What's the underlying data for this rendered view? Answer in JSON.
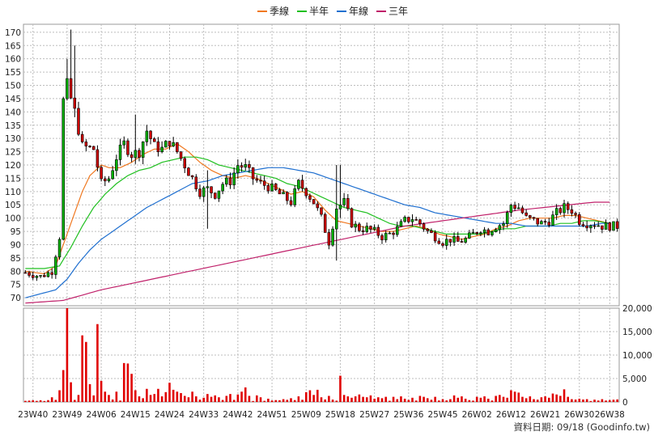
{
  "colors": {
    "up": "#00b000",
    "down": "#d00000",
    "volume": "#e00000",
    "ma_quarter": "#f07820",
    "ma_half": "#20c020",
    "ma_year": "#2070d0",
    "ma_three": "#c0206a",
    "grid": "#bdbdbd",
    "wick": "#000000"
  },
  "chart_data": {
    "type": "candlestick",
    "legend": [
      {
        "name": "季線",
        "color": "#f07820"
      },
      {
        "name": "半年",
        "color": "#20c020"
      },
      {
        "name": "年線",
        "color": "#2070d0"
      },
      {
        "name": "三年",
        "color": "#c0206a"
      }
    ],
    "price_axis": {
      "ticks": [
        "70",
        "75",
        "80",
        "85",
        "90",
        "95",
        "100",
        "105",
        "110",
        "115",
        "120",
        "125",
        "130",
        "135",
        "140",
        "145",
        "150",
        "155",
        "160",
        "165",
        "170"
      ],
      "ylim": [
        67,
        173
      ]
    },
    "volume_axis": {
      "ticks": [
        "0",
        "5,000",
        "10,000",
        "15,000",
        "20,000"
      ],
      "ylim": [
        0,
        20000
      ]
    },
    "x_ticks": [
      {
        "label": "23W40",
        "index": 2
      },
      {
        "label": "23W49",
        "index": 11
      },
      {
        "label": "24W06",
        "index": 20
      },
      {
        "label": "24W15",
        "index": 29
      },
      {
        "label": "24W24",
        "index": 38
      },
      {
        "label": "24W33",
        "index": 47
      },
      {
        "label": "24W42",
        "index": 56
      },
      {
        "label": "24W51",
        "index": 65
      },
      {
        "label": "25W09",
        "index": 74
      },
      {
        "label": "25W18",
        "index": 83
      },
      {
        "label": "25W27",
        "index": 92
      },
      {
        "label": "25W36",
        "index": 101
      },
      {
        "label": "25W45",
        "index": 110
      },
      {
        "label": "26W02",
        "index": 119
      },
      {
        "label": "26W12",
        "index": 128
      },
      {
        "label": "26W21",
        "index": 137
      },
      {
        "label": "26W30",
        "index": 146
      },
      {
        "label": "26W38",
        "index": 154
      }
    ],
    "keypoints": [
      [
        0,
        79.5
      ],
      [
        4,
        78
      ],
      [
        7,
        80
      ],
      [
        9,
        93
      ],
      [
        11,
        150
      ],
      [
        13,
        140
      ],
      [
        15,
        127
      ],
      [
        18,
        126
      ],
      [
        20,
        113
      ],
      [
        22,
        115
      ],
      [
        24,
        123
      ],
      [
        26,
        128
      ],
      [
        28,
        124
      ],
      [
        30,
        125
      ],
      [
        32,
        133
      ],
      [
        34,
        127
      ],
      [
        36,
        126
      ],
      [
        38,
        129
      ],
      [
        40,
        125
      ],
      [
        42,
        120
      ],
      [
        44,
        115
      ],
      [
        46,
        110
      ],
      [
        48,
        111
      ],
      [
        50,
        109
      ],
      [
        52,
        113
      ],
      [
        54,
        114
      ],
      [
        56,
        120
      ],
      [
        58,
        119
      ],
      [
        60,
        115
      ],
      [
        62,
        113
      ],
      [
        64,
        112
      ],
      [
        66,
        110
      ],
      [
        68,
        108
      ],
      [
        70,
        106
      ],
      [
        72,
        113
      ],
      [
        74,
        110
      ],
      [
        76,
        106
      ],
      [
        78,
        100
      ],
      [
        80,
        91
      ],
      [
        82,
        104
      ],
      [
        84,
        106
      ],
      [
        86,
        98
      ],
      [
        88,
        96
      ],
      [
        90,
        96
      ],
      [
        92,
        95
      ],
      [
        94,
        93
      ],
      [
        96,
        94
      ],
      [
        98,
        96
      ],
      [
        100,
        99
      ],
      [
        102,
        100
      ],
      [
        104,
        98
      ],
      [
        106,
        95
      ],
      [
        108,
        93
      ],
      [
        110,
        91
      ],
      [
        112,
        92
      ],
      [
        114,
        91
      ],
      [
        116,
        92
      ],
      [
        118,
        94
      ],
      [
        120,
        96
      ],
      [
        122,
        95
      ],
      [
        124,
        97
      ],
      [
        126,
        98
      ],
      [
        128,
        105
      ],
      [
        130,
        104
      ],
      [
        132,
        100
      ],
      [
        134,
        99
      ],
      [
        136,
        98
      ],
      [
        138,
        99
      ],
      [
        140,
        102
      ],
      [
        142,
        104
      ],
      [
        144,
        103
      ],
      [
        146,
        99
      ],
      [
        148,
        98
      ],
      [
        150,
        98
      ],
      [
        152,
        97
      ],
      [
        154,
        97
      ]
    ],
    "moving_averages": {
      "季線": [
        [
          0,
          80
        ],
        [
          5,
          79
        ],
        [
          8,
          82
        ],
        [
          10,
          90
        ],
        [
          13,
          102
        ],
        [
          15,
          110
        ],
        [
          17,
          116
        ],
        [
          20,
          120
        ],
        [
          22,
          119
        ],
        [
          25,
          119
        ],
        [
          28,
          121
        ],
        [
          31,
          124
        ],
        [
          34,
          126
        ],
        [
          37,
          126
        ],
        [
          40,
          128
        ],
        [
          43,
          125
        ],
        [
          46,
          121
        ],
        [
          49,
          118
        ],
        [
          52,
          116
        ],
        [
          55,
          115
        ],
        [
          58,
          116
        ],
        [
          61,
          115
        ],
        [
          64,
          113
        ],
        [
          67,
          111
        ],
        [
          70,
          109
        ],
        [
          73,
          110
        ],
        [
          76,
          108
        ],
        [
          79,
          103
        ],
        [
          82,
          99
        ],
        [
          85,
          98
        ],
        [
          88,
          97
        ],
        [
          91,
          96
        ],
        [
          94,
          95
        ],
        [
          97,
          95
        ],
        [
          100,
          96
        ],
        [
          103,
          97
        ],
        [
          106,
          96
        ],
        [
          109,
          94
        ],
        [
          112,
          93
        ],
        [
          115,
          92
        ],
        [
          118,
          93
        ],
        [
          121,
          94
        ],
        [
          124,
          96
        ],
        [
          127,
          97
        ],
        [
          130,
          99
        ],
        [
          133,
          100
        ],
        [
          136,
          100
        ],
        [
          139,
          100
        ],
        [
          142,
          101
        ],
        [
          145,
          101
        ],
        [
          148,
          100
        ],
        [
          151,
          99
        ],
        [
          154,
          98
        ]
      ],
      "半年": [
        [
          0,
          81
        ],
        [
          5,
          81
        ],
        [
          9,
          82
        ],
        [
          12,
          89
        ],
        [
          15,
          97
        ],
        [
          18,
          104
        ],
        [
          21,
          109
        ],
        [
          24,
          113
        ],
        [
          27,
          116
        ],
        [
          30,
          118
        ],
        [
          33,
          119
        ],
        [
          36,
          121
        ],
        [
          39,
          122
        ],
        [
          42,
          123
        ],
        [
          45,
          123
        ],
        [
          48,
          122
        ],
        [
          51,
          120
        ],
        [
          54,
          119
        ],
        [
          57,
          118
        ],
        [
          60,
          117
        ],
        [
          63,
          116
        ],
        [
          66,
          115
        ],
        [
          69,
          113
        ],
        [
          72,
          112
        ],
        [
          75,
          110
        ],
        [
          78,
          108
        ],
        [
          81,
          106
        ],
        [
          84,
          104
        ],
        [
          87,
          103
        ],
        [
          90,
          102
        ],
        [
          93,
          100
        ],
        [
          96,
          98
        ],
        [
          99,
          97
        ],
        [
          102,
          97
        ],
        [
          105,
          96
        ],
        [
          108,
          95
        ],
        [
          111,
          94
        ],
        [
          114,
          94
        ],
        [
          117,
          94
        ],
        [
          120,
          94
        ],
        [
          123,
          95
        ],
        [
          126,
          96
        ],
        [
          129,
          96
        ],
        [
          132,
          97
        ],
        [
          135,
          97
        ],
        [
          138,
          97
        ],
        [
          141,
          98
        ],
        [
          144,
          98
        ],
        [
          147,
          99
        ],
        [
          150,
          99
        ],
        [
          154,
          98
        ]
      ],
      "年線": [
        [
          0,
          70
        ],
        [
          4,
          71.5
        ],
        [
          8,
          73
        ],
        [
          11,
          77
        ],
        [
          14,
          83
        ],
        [
          17,
          88
        ],
        [
          20,
          92
        ],
        [
          24,
          96
        ],
        [
          28,
          100
        ],
        [
          32,
          104
        ],
        [
          36,
          107
        ],
        [
          40,
          110
        ],
        [
          44,
          113
        ],
        [
          48,
          114
        ],
        [
          52,
          116
        ],
        [
          56,
          117
        ],
        [
          60,
          118
        ],
        [
          64,
          119
        ],
        [
          68,
          119
        ],
        [
          72,
          118
        ],
        [
          76,
          117
        ],
        [
          80,
          115
        ],
        [
          84,
          113
        ],
        [
          88,
          111
        ],
        [
          92,
          109
        ],
        [
          96,
          107
        ],
        [
          100,
          105
        ],
        [
          104,
          104
        ],
        [
          108,
          102
        ],
        [
          112,
          101
        ],
        [
          116,
          100
        ],
        [
          120,
          99
        ],
        [
          124,
          98
        ],
        [
          128,
          98
        ],
        [
          132,
          97
        ],
        [
          136,
          97
        ],
        [
          140,
          97
        ],
        [
          144,
          97
        ],
        [
          148,
          97
        ],
        [
          152,
          98
        ],
        [
          154,
          98
        ]
      ],
      "三年": [
        [
          0,
          68
        ],
        [
          10,
          69
        ],
        [
          20,
          73
        ],
        [
          30,
          76
        ],
        [
          40,
          79
        ],
        [
          50,
          82
        ],
        [
          60,
          85
        ],
        [
          70,
          88
        ],
        [
          80,
          91
        ],
        [
          90,
          94
        ],
        [
          100,
          97
        ],
        [
          110,
          99
        ],
        [
          120,
          101
        ],
        [
          130,
          103
        ],
        [
          140,
          104.5
        ],
        [
          150,
          106
        ],
        [
          154,
          106
        ]
      ]
    },
    "volume_spikes": [
      [
        7,
        1000
      ],
      [
        9,
        2500
      ],
      [
        10,
        6800
      ],
      [
        11,
        20000
      ],
      [
        12,
        4200
      ],
      [
        14,
        1500
      ],
      [
        15,
        14200
      ],
      [
        16,
        12800
      ],
      [
        17,
        3800
      ],
      [
        18,
        1400
      ],
      [
        19,
        16600
      ],
      [
        20,
        4500
      ],
      [
        21,
        2200
      ],
      [
        22,
        1500
      ],
      [
        24,
        2200
      ],
      [
        26,
        8300
      ],
      [
        27,
        8200
      ],
      [
        28,
        6000
      ],
      [
        29,
        2500
      ],
      [
        30,
        1200
      ],
      [
        31,
        800
      ],
      [
        32,
        2800
      ],
      [
        33,
        1500
      ],
      [
        34,
        1700
      ],
      [
        35,
        2800
      ],
      [
        36,
        1200
      ],
      [
        37,
        2100
      ],
      [
        38,
        4100
      ],
      [
        39,
        2600
      ],
      [
        40,
        2200
      ],
      [
        41,
        1900
      ],
      [
        42,
        1300
      ],
      [
        43,
        1000
      ],
      [
        44,
        2200
      ],
      [
        45,
        1200
      ],
      [
        47,
        900
      ],
      [
        48,
        1700
      ],
      [
        49,
        1100
      ],
      [
        50,
        1400
      ],
      [
        51,
        1000
      ],
      [
        53,
        1300
      ],
      [
        54,
        1700
      ],
      [
        56,
        1600
      ],
      [
        57,
        2200
      ],
      [
        58,
        3100
      ],
      [
        59,
        1300
      ],
      [
        61,
        1400
      ],
      [
        62,
        1000
      ],
      [
        64,
        700
      ],
      [
        66,
        400
      ],
      [
        68,
        600
      ],
      [
        70,
        800
      ],
      [
        72,
        1200
      ],
      [
        74,
        2100
      ],
      [
        75,
        2500
      ],
      [
        76,
        1500
      ],
      [
        77,
        2600
      ],
      [
        78,
        1000
      ],
      [
        80,
        1300
      ],
      [
        83,
        5600
      ],
      [
        84,
        1500
      ],
      [
        85,
        1200
      ],
      [
        86,
        900
      ],
      [
        87,
        1200
      ],
      [
        88,
        1600
      ],
      [
        89,
        1100
      ],
      [
        90,
        1000
      ],
      [
        91,
        1400
      ],
      [
        92,
        700
      ],
      [
        93,
        1000
      ],
      [
        94,
        800
      ],
      [
        95,
        1100
      ],
      [
        97,
        1100
      ],
      [
        98,
        600
      ],
      [
        99,
        1200
      ],
      [
        100,
        700
      ],
      [
        102,
        900
      ],
      [
        104,
        1300
      ],
      [
        105,
        1100
      ],
      [
        106,
        800
      ],
      [
        108,
        1100
      ],
      [
        110,
        600
      ],
      [
        112,
        600
      ],
      [
        113,
        1400
      ],
      [
        114,
        900
      ],
      [
        115,
        1200
      ],
      [
        116,
        700
      ],
      [
        117,
        400
      ],
      [
        119,
        1100
      ],
      [
        120,
        900
      ],
      [
        121,
        1200
      ],
      [
        122,
        700
      ],
      [
        124,
        1300
      ],
      [
        125,
        1500
      ],
      [
        126,
        1100
      ],
      [
        127,
        900
      ],
      [
        128,
        2500
      ],
      [
        129,
        2200
      ],
      [
        130,
        2000
      ],
      [
        131,
        1100
      ],
      [
        132,
        800
      ],
      [
        133,
        1200
      ],
      [
        134,
        600
      ],
      [
        135,
        500
      ],
      [
        136,
        1000
      ],
      [
        137,
        1200
      ],
      [
        138,
        900
      ],
      [
        139,
        1800
      ],
      [
        140,
        1600
      ],
      [
        141,
        1300
      ],
      [
        142,
        2700
      ],
      [
        143,
        1100
      ],
      [
        144,
        600
      ],
      [
        146,
        700
      ],
      [
        148,
        600
      ],
      [
        150,
        500
      ],
      [
        152,
        600
      ],
      [
        154,
        400
      ]
    ]
  },
  "footer": {
    "credit": "資料日期: 09/18 (Goodinfo.tw)"
  }
}
